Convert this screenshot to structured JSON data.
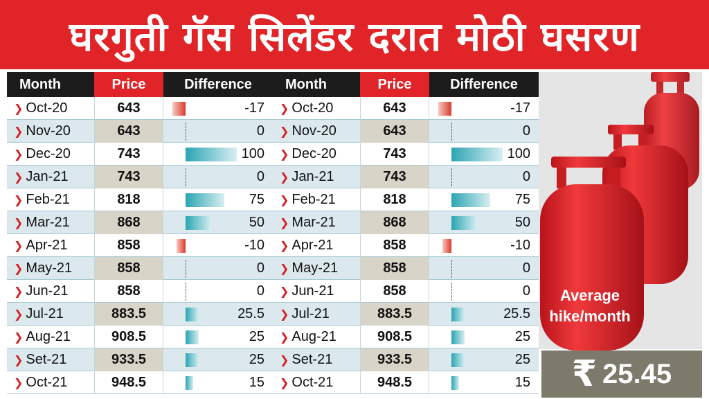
{
  "banner": {
    "title": "घरगुती गॅस सिलेंडर दरात मोठी घसरण"
  },
  "headers": {
    "month": "Month",
    "price": "Price",
    "difference": "Difference"
  },
  "chart_data": {
    "type": "table",
    "columns": [
      "Month",
      "Price",
      "Difference"
    ],
    "rows": [
      {
        "month": "Oct-20",
        "price": "643",
        "difference": "-17",
        "diff_value": -17
      },
      {
        "month": "Nov-20",
        "price": "643",
        "difference": "0",
        "diff_value": 0
      },
      {
        "month": "Dec-20",
        "price": "743",
        "difference": "100",
        "diff_value": 100
      },
      {
        "month": "Jan-21",
        "price": "743",
        "difference": "0",
        "diff_value": 0
      },
      {
        "month": "Feb-21",
        "price": "818",
        "difference": "75",
        "diff_value": 75
      },
      {
        "month": "Mar-21",
        "price": "868",
        "difference": "50",
        "diff_value": 50
      },
      {
        "month": "Apr-21",
        "price": "858",
        "difference": "-10",
        "diff_value": -10
      },
      {
        "month": "May-21",
        "price": "858",
        "difference": "0",
        "diff_value": 0
      },
      {
        "month": "Jun-21",
        "price": "858",
        "difference": "0",
        "diff_value": 0
      },
      {
        "month": "Jul-21",
        "price": "883.5",
        "difference": "25.5",
        "diff_value": 25.5
      },
      {
        "month": "Aug-21",
        "price": "908.5",
        "difference": "25",
        "diff_value": 25
      },
      {
        "month": "Set-21",
        "price": "933.5",
        "difference": "25",
        "diff_value": 25
      },
      {
        "month": "Oct-21",
        "price": "948.5",
        "difference": "15",
        "diff_value": 15
      }
    ],
    "diff_max": 100
  },
  "summary": {
    "label": "Average hike/month",
    "currency_symbol": "₹",
    "value": "25.45"
  },
  "colors": {
    "accent_red": "#e02428",
    "bar_teal": "#2aa5b3",
    "header_dark": "#1c1c1c",
    "summary_box": "#7d7a6c"
  }
}
